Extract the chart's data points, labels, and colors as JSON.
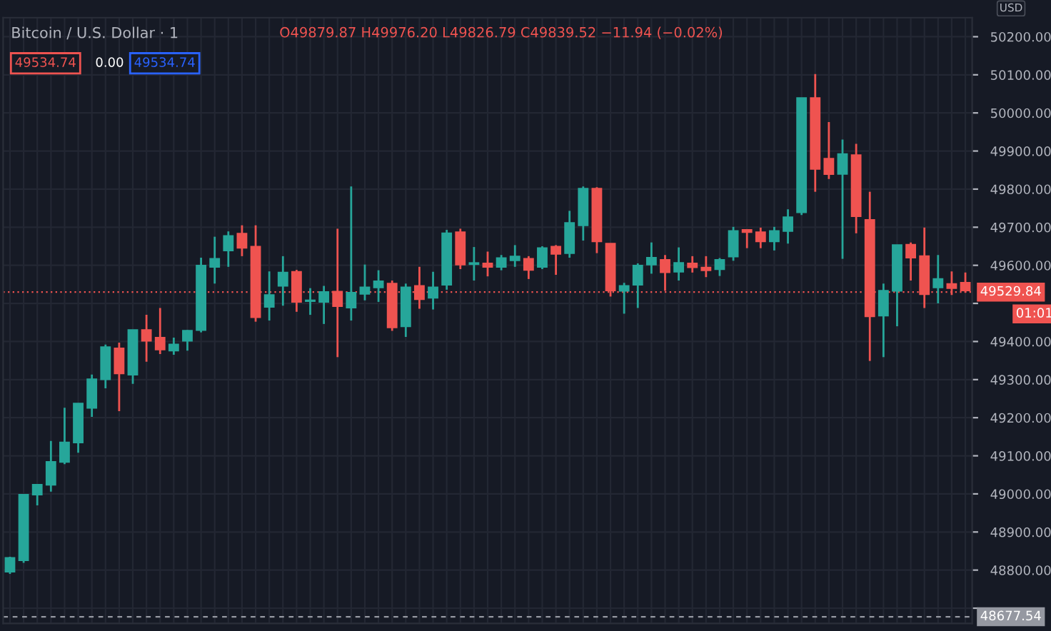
{
  "chart_data": {
    "type": "candlestick",
    "title": "Bitcoin / U.S. Dollar · 1",
    "ylabel": "USD",
    "categories": [
      null,
      null,
      null,
      null,
      null,
      null,
      null,
      null,
      null,
      null,
      null,
      null,
      null,
      null,
      null,
      null,
      null,
      null,
      null,
      null,
      null,
      null,
      null,
      null,
      null,
      null,
      null,
      null,
      null,
      null,
      null,
      null,
      null,
      null,
      null,
      null,
      null,
      null,
      null,
      null,
      null,
      null,
      null,
      null,
      null,
      null,
      null,
      null,
      null,
      null,
      null,
      null,
      null,
      null,
      null,
      null,
      null,
      null,
      null,
      null,
      null,
      null,
      null,
      null,
      null,
      null,
      null,
      null,
      null,
      null,
      null
    ],
    "ohlc": [
      [
        48796,
        48835,
        48790,
        48832
      ],
      [
        48826,
        49000,
        48819,
        48998
      ],
      [
        48998,
        49026,
        48970,
        49024
      ],
      [
        49024,
        49139,
        49006,
        49084
      ],
      [
        49084,
        49226,
        49078,
        49135
      ],
      [
        49135,
        49237,
        49108,
        49237
      ],
      [
        49226,
        49313,
        49202,
        49301
      ],
      [
        49301,
        49392,
        49277,
        49385
      ],
      [
        49382,
        49397,
        49217,
        49316
      ],
      [
        49313,
        49430,
        49289,
        49430
      ],
      [
        49430,
        49470,
        49347,
        49402
      ],
      [
        49410,
        49488,
        49367,
        49379
      ],
      [
        49376,
        49410,
        49365,
        49392
      ],
      [
        49402,
        49430,
        49376,
        49428
      ],
      [
        49430,
        49620,
        49424,
        49599
      ],
      [
        49596,
        49675,
        49552,
        49617
      ],
      [
        49639,
        49689,
        49596,
        49677
      ],
      [
        49683,
        49705,
        49624,
        49646
      ],
      [
        49649,
        49705,
        49452,
        49464
      ],
      [
        49491,
        49584,
        49455,
        49522
      ],
      [
        49546,
        49624,
        49494,
        49581
      ],
      [
        49583,
        49588,
        49478,
        49504
      ],
      [
        49506,
        49540,
        49470,
        49508
      ],
      [
        49504,
        49546,
        49446,
        49530
      ],
      [
        49531,
        49696,
        49359,
        49493
      ],
      [
        49489,
        49807,
        49455,
        49528
      ],
      [
        49525,
        49602,
        49508,
        49542
      ],
      [
        49542,
        49587,
        49504,
        49558
      ],
      [
        49552,
        49560,
        49428,
        49437
      ],
      [
        49440,
        49552,
        49412,
        49542
      ],
      [
        49546,
        49596,
        49486,
        49511
      ],
      [
        49515,
        49583,
        49484,
        49542
      ],
      [
        49549,
        49693,
        49536,
        49684
      ],
      [
        49687,
        49696,
        49590,
        49602
      ],
      [
        49603,
        49648,
        49560,
        49606
      ],
      [
        49605,
        49636,
        49571,
        49596
      ],
      [
        49596,
        49627,
        49587,
        49619
      ],
      [
        49613,
        49653,
        49596,
        49623
      ],
      [
        49617,
        49624,
        49564,
        49588
      ],
      [
        49596,
        49650,
        49590,
        49645
      ],
      [
        49649,
        49653,
        49575,
        49630
      ],
      [
        49632,
        49743,
        49620,
        49711
      ],
      [
        49705,
        49807,
        49665,
        49801
      ],
      [
        49801,
        49805,
        49632,
        49663
      ],
      [
        49657,
        49657,
        49518,
        49534
      ],
      [
        49533,
        49554,
        49473,
        49546
      ],
      [
        49549,
        49605,
        49488,
        49599
      ],
      [
        49602,
        49660,
        49578,
        49620
      ],
      [
        49614,
        49627,
        49533,
        49582
      ],
      [
        49583,
        49647,
        49560,
        49606
      ],
      [
        49605,
        49624,
        49581,
        49595
      ],
      [
        49594,
        49624,
        49569,
        49587
      ],
      [
        49590,
        49619,
        49572,
        49614
      ],
      [
        49623,
        49701,
        49612,
        49690
      ],
      [
        49693,
        49693,
        49645,
        49687
      ],
      [
        49687,
        49699,
        49645,
        49663
      ],
      [
        49663,
        49701,
        49639,
        49690
      ],
      [
        49690,
        49747,
        49657,
        49726
      ],
      [
        49739,
        50039,
        49732,
        50039
      ],
      [
        50039,
        50102,
        49793,
        49853
      ],
      [
        49879.87,
        49976.2,
        49826.79,
        49839.52
      ],
      [
        49840,
        49930,
        49617,
        49892
      ],
      [
        49889,
        49919,
        49684,
        49729
      ],
      [
        49719,
        49793,
        49349,
        49466
      ],
      [
        49468,
        49552,
        49359,
        49533
      ],
      [
        49533,
        49653,
        49440,
        49653
      ],
      [
        49654,
        49660,
        49560,
        49620
      ],
      [
        49624,
        49699,
        49488,
        49524
      ],
      [
        49542,
        49627,
        49500,
        49564
      ],
      [
        49551,
        49584,
        49522,
        49540
      ],
      [
        49554,
        49581,
        49528,
        49534
      ]
    ],
    "colors": [
      "#26a69a",
      "#26a69a",
      "#26a69a",
      "#26a69a",
      "#26a69a",
      "#26a69a",
      "#26a69a",
      "#26a69a",
      "#ef5350",
      "#26a69a",
      "#ef5350",
      "#ef5350",
      "#26a69a",
      "#26a69a",
      "#26a69a",
      "#26a69a",
      "#26a69a",
      "#ef5350",
      "#ef5350",
      "#26a69a",
      "#26a69a",
      "#ef5350",
      "#26a69a",
      "#26a69a",
      "#ef5350",
      "#26a69a",
      "#26a69a",
      "#26a69a",
      "#ef5350",
      "#26a69a",
      "#ef5350",
      "#26a69a",
      "#26a69a",
      "#ef5350",
      "#26a69a",
      "#ef5350",
      "#26a69a",
      "#26a69a",
      "#ef5350",
      "#26a69a",
      "#ef5350",
      "#26a69a",
      "#26a69a",
      "#ef5350",
      "#ef5350",
      "#26a69a",
      "#26a69a",
      "#26a69a",
      "#ef5350",
      "#26a69a",
      "#ef5350",
      "#ef5350",
      "#26a69a",
      "#26a69a",
      "#ef5350",
      "#ef5350",
      "#26a69a",
      "#26a69a",
      "#26a69a",
      "#ef5350",
      "#ef5350",
      "#26a69a",
      "#ef5350",
      "#ef5350",
      "#26a69a",
      "#26a69a",
      "#ef5350",
      "#ef5350",
      "#26a69a",
      "#ef5350",
      "#ef5350"
    ],
    "ylim": [
      48660,
      50250
    ],
    "yticks": [
      {
        "value": 48700,
        "label": null
      },
      {
        "value": 48800,
        "label": "48800.00"
      },
      {
        "value": 48900,
        "label": "48900.00"
      },
      {
        "value": 49000,
        "label": "49000.00"
      },
      {
        "value": 49100,
        "label": "49100.00"
      },
      {
        "value": 49200,
        "label": "49200.00"
      },
      {
        "value": 49300,
        "label": "49300.00"
      },
      {
        "value": 49400,
        "label": "49400.00"
      },
      {
        "value": 49500,
        "label": null
      },
      {
        "value": 49600,
        "label": "49600.00"
      },
      {
        "value": 49700,
        "label": "49700.00"
      },
      {
        "value": 49800,
        "label": "49800.00"
      },
      {
        "value": 49900,
        "label": "49900.00"
      },
      {
        "value": 50000,
        "label": "50000.00"
      },
      {
        "value": 50100,
        "label": "50100.00"
      },
      {
        "value": 50200,
        "label": "50200.00"
      }
    ],
    "grid": true,
    "ref_lines": [
      {
        "axis": "y",
        "value": 49529.84,
        "label": "49529.84",
        "color": "#ef5350",
        "line_style": "dotted"
      },
      {
        "axis": "y",
        "value": 48677.54,
        "label": "48677.54",
        "color": "#9598a1",
        "line_style": "dashed"
      }
    ],
    "annotations": [
      "O49879.87 H49976.20 L49826.79 C49839.52 −11.94 (−0.02%)",
      "49534.74",
      "0.00",
      "49534.74",
      "01:01"
    ]
  }
}
